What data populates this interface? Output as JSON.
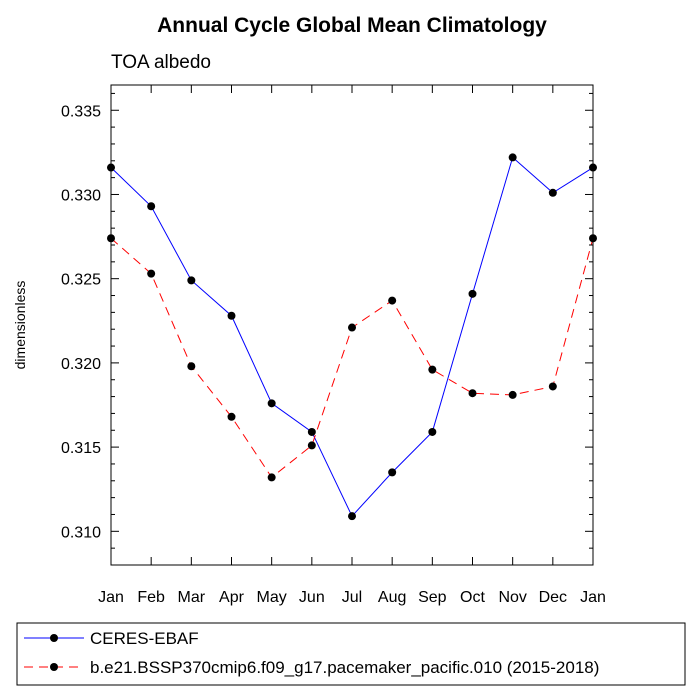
{
  "chart_data": {
    "type": "line",
    "title": "Annual Cycle Global Mean Climatology",
    "subtitle": "TOA albedo",
    "xlabel": "",
    "ylabel": "dimensionless",
    "categories": [
      "Jan",
      "Feb",
      "Mar",
      "Apr",
      "May",
      "Jun",
      "Jul",
      "Aug",
      "Sep",
      "Oct",
      "Nov",
      "Dec",
      "Jan"
    ],
    "ylim": [
      0.308,
      0.3365
    ],
    "yticks": [
      0.31,
      0.315,
      0.32,
      0.325,
      0.33,
      0.335
    ],
    "ytick_labels": [
      "0.310",
      "0.315",
      "0.320",
      "0.325",
      "0.330",
      "0.335"
    ],
    "series": [
      {
        "name": "CERES-EBAF",
        "color": "#0000ff",
        "dash": "solid",
        "values": [
          0.3316,
          0.3293,
          0.3249,
          0.3228,
          0.3176,
          0.3159,
          0.3109,
          0.3135,
          0.3159,
          0.3241,
          0.3322,
          0.3301,
          0.3316
        ]
      },
      {
        "name": "b.e21.BSSP370cmip6.f09_g17.pacemaker_pacific.010 (2015-2018)",
        "color": "#ff0000",
        "dash": "dashed",
        "values": [
          0.3274,
          0.3253,
          0.3198,
          0.3168,
          0.3132,
          0.3151,
          0.3221,
          0.3237,
          0.3196,
          0.3182,
          0.3181,
          0.3186,
          0.3274
        ]
      }
    ],
    "legend_position": "bottom"
  }
}
